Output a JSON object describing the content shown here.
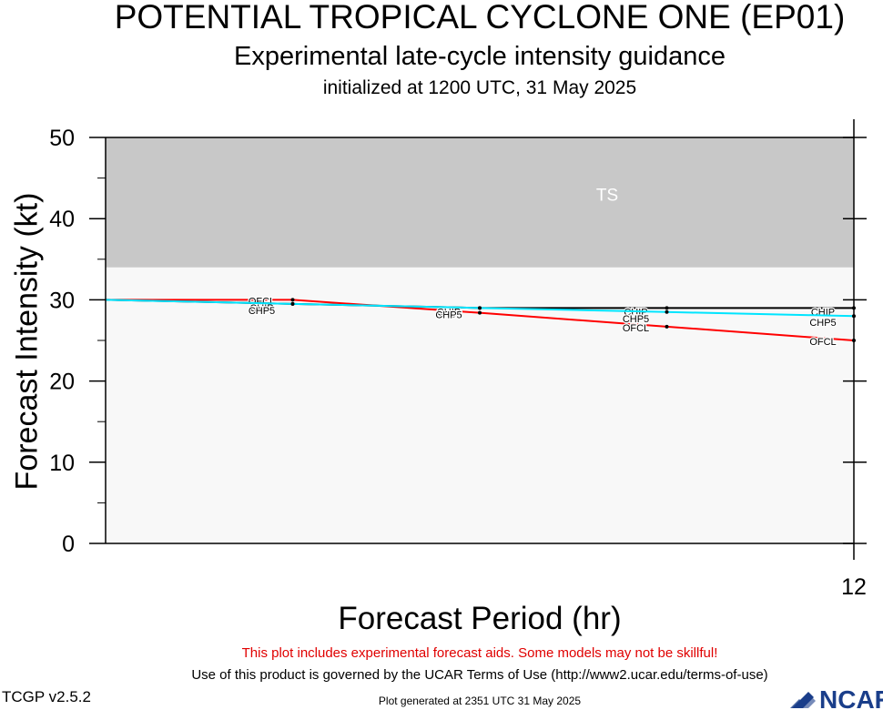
{
  "header": {
    "title": "POTENTIAL TROPICAL CYCLONE ONE (EP01)",
    "subtitle": "Experimental late-cycle intensity guidance",
    "initialized": "initialized at 1200 UTC, 31 May 2025"
  },
  "footer": {
    "warning": "This plot includes experimental forecast aids. Some models may not be skillful!",
    "terms": "Use of this product is governed by the UCAR Terms of Use (http://www2.ucar.edu/terms-of-use)",
    "version": "TCGP v2.5.2",
    "generated": "Plot generated at 2351 UTC   31 May 2025",
    "logo_text": "NCAR"
  },
  "colors": {
    "ts_band": "#c8c8c8",
    "below_band": "#f8f8f8",
    "ofcl": "#ff0000",
    "chip": "#000000",
    "chp5": "#00e5ff"
  },
  "chart_data": {
    "type": "line",
    "xlabel": "Forecast Period (hr)",
    "ylabel": "Forecast Intensity (kt)",
    "xlim": [
      0,
      12
    ],
    "ylim": [
      0,
      50
    ],
    "yticks": [
      0,
      10,
      20,
      30,
      40,
      50
    ],
    "xticks": [
      12
    ],
    "bands": [
      {
        "label": "TS",
        "from": 34,
        "to": 50
      }
    ],
    "series": [
      {
        "name": "OFCL",
        "color": "#ff0000",
        "x": [
          0,
          3,
          6,
          9,
          12
        ],
        "y": [
          30,
          30,
          28.4,
          26.7,
          25
        ]
      },
      {
        "name": "CHIP",
        "color": "#000000",
        "x": [
          0,
          3,
          6,
          9,
          12
        ],
        "y": [
          30,
          29.5,
          29,
          29,
          29
        ]
      },
      {
        "name": "CHP5",
        "color": "#00e5ff",
        "x": [
          0,
          3,
          6,
          9,
          12
        ],
        "y": [
          30,
          29.5,
          29,
          28.5,
          28
        ]
      }
    ]
  }
}
